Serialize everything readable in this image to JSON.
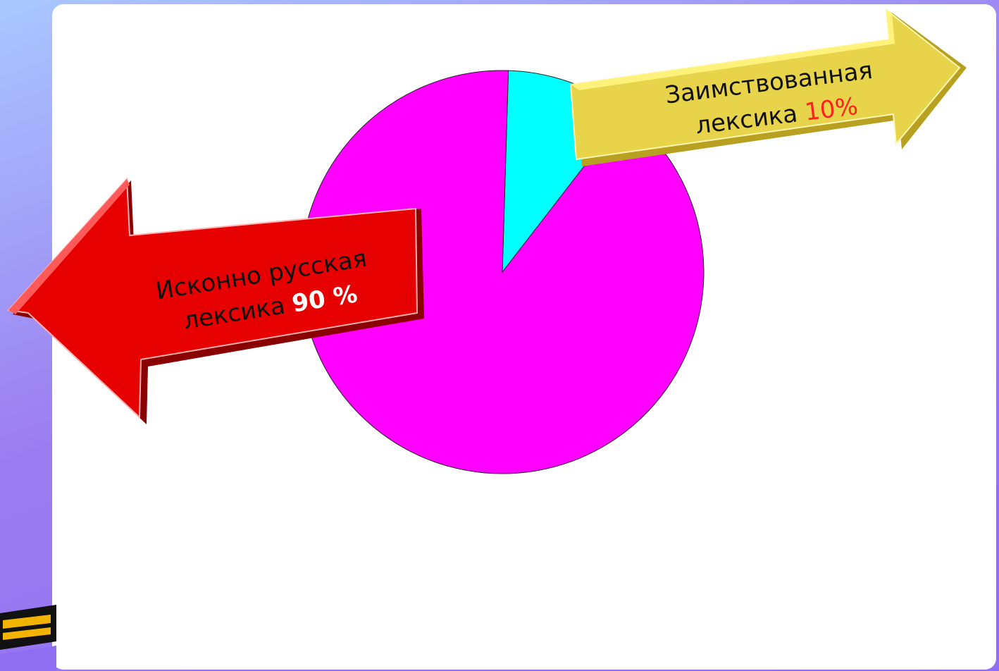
{
  "chart_data": {
    "type": "pie",
    "categories": [
      "Исконно русская лексика",
      "Заимствованная лексика"
    ],
    "values": [
      90,
      10
    ],
    "colors": [
      "#ff00ff",
      "#00ffff"
    ]
  },
  "left_arrow": {
    "line1": "Исконно русская",
    "line2": "лексика",
    "percent": "90 %",
    "color": "#e00000"
  },
  "right_arrow": {
    "line1": "Заимствованная",
    "line2": "лексика",
    "percent": "10%",
    "color": "#e8d44a"
  }
}
